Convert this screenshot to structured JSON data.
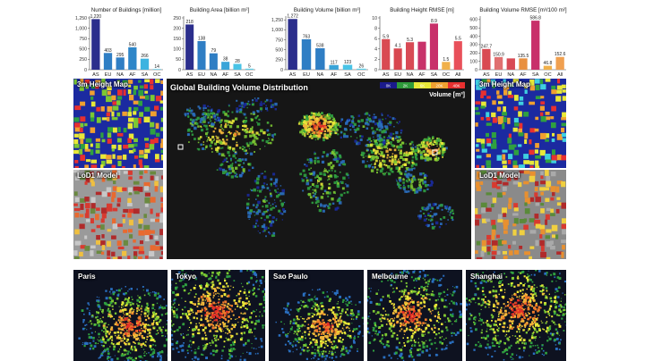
{
  "chart_data": [
    {
      "type": "bar",
      "title": "Number of Buildings [million]",
      "categories": [
        "AS",
        "EU",
        "NA",
        "AF",
        "SA",
        "OC"
      ],
      "values": [
        1220,
        403,
        295,
        540,
        266,
        14
      ],
      "value_labels": [
        "1,220",
        "403",
        "295",
        "540",
        "266",
        "14"
      ],
      "yticks": [
        "0",
        "250",
        "500",
        "750",
        "1,000",
        "1,250"
      ],
      "ylim": [
        0,
        1250
      ],
      "colors": [
        "#2b2e8c",
        "#2f7ec4",
        "#2f7ec4",
        "#2e86c8",
        "#3db3e0",
        "#49c3e6"
      ]
    },
    {
      "type": "bar",
      "title": "Building Area [billion m²]",
      "categories": [
        "AS",
        "EU",
        "NA",
        "AF",
        "SA",
        "OC"
      ],
      "values": [
        218,
        138,
        79,
        38,
        28,
        5
      ],
      "value_labels": [
        "218",
        "138",
        "79",
        "38",
        "28",
        "5"
      ],
      "yticks": [
        "0",
        "50",
        "100",
        "150",
        "200",
        "250"
      ],
      "ylim": [
        0,
        250
      ],
      "colors": [
        "#2b2e8c",
        "#2f7ec4",
        "#2f7ec4",
        "#3aa4d8",
        "#49c3e6",
        "#5bd0ea"
      ]
    },
    {
      "type": "bar",
      "title": "Building Volume [billion m³]",
      "categories": [
        "AS",
        "EU",
        "NA",
        "AF",
        "SA",
        "OC"
      ],
      "values": [
        1272,
        763,
        538,
        117,
        123,
        26
      ],
      "value_labels": [
        "1,272",
        "763",
        "538",
        "117",
        "123",
        "26"
      ],
      "yticks": [
        "0",
        "250",
        "500",
        "750",
        "1,000",
        "1,250"
      ],
      "ylim": [
        0,
        1300
      ],
      "colors": [
        "#2b2e8c",
        "#2f7ec4",
        "#2f7ec4",
        "#3aa4d8",
        "#49c3e6",
        "#5bd0ea"
      ]
    },
    {
      "type": "bar",
      "title": "Building Height RMSE [m]",
      "categories": [
        "AS",
        "EU",
        "NA",
        "AF",
        "SA",
        "OC",
        "All"
      ],
      "values": [
        5.9,
        4.1,
        5.3,
        5.4,
        8.9,
        1.5,
        5.5
      ],
      "value_labels": [
        "5.9",
        "4.1",
        "5.3",
        "",
        "8.9",
        "1.5",
        "5.5"
      ],
      "yticks": [
        "0",
        "2",
        "4",
        "6",
        "8",
        "10"
      ],
      "ylim": [
        0,
        10
      ],
      "colors": [
        "#d94a52",
        "#d8474f",
        "#d84a55",
        "#c8326a",
        "#c8306a",
        "#f0b04a",
        "#e8505a"
      ]
    },
    {
      "type": "bar",
      "title": "Building Volume RMSE [m³/100 m²]",
      "categories": [
        "AS",
        "EU",
        "NA",
        "AF",
        "SA",
        "OC",
        "All"
      ],
      "values": [
        247.7,
        150.9,
        135.2,
        135.5,
        586.8,
        46.8,
        152.6
      ],
      "value_labels": [
        "247.7",
        "150.9",
        "",
        "135.5",
        "586.8",
        "46.8",
        "152.6"
      ],
      "yticks": [
        "0",
        "100",
        "200",
        "300",
        "400",
        "500",
        "600"
      ],
      "ylim": [
        0,
        620
      ],
      "colors": [
        "#d94a52",
        "#e07070",
        "#d84a55",
        "#e89040",
        "#c8306a",
        "#f0b04a",
        "#f0a050"
      ]
    }
  ],
  "maps": {
    "main_title": "Global Building Volume Distribution",
    "legend_ticks": [
      "0K",
      "2K",
      "6K",
      "20K",
      "40K"
    ],
    "legend_colors": [
      "#1a1a8c",
      "#2e9a3a",
      "#e8e838",
      "#f0a030",
      "#e83030"
    ],
    "legend_label": "Volume [m³]",
    "left_top": "3m Height Map",
    "left_bottom": "LoD1 Model",
    "right_top": "3m Height Map",
    "right_bottom": "LoD1 Model",
    "cities": [
      "Paris",
      "Tokyo",
      "Sao Paulo",
      "Melbourne",
      "Shanghai"
    ]
  }
}
